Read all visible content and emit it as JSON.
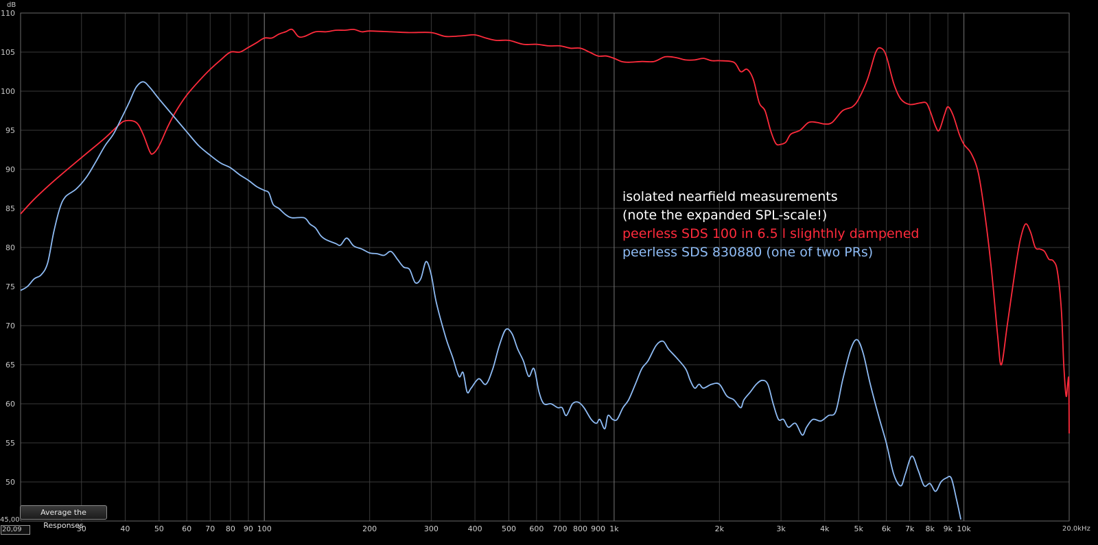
{
  "axis": {
    "y_unit": "dB",
    "x_unit_label": "20.0kHz",
    "y_min_label": "45,00",
    "x_min_label": "20,09"
  },
  "legend": {
    "line1": "isolated nearfield measurements",
    "line2": "(note the expanded SPL-scale!)",
    "line3": "peerless SDS 100 in 6.5 l slighthly dampened",
    "line4": "peerless SDS 830880 (one of two PRs)",
    "line1_color": "#ffffff",
    "line2_color": "#ffffff",
    "line3_color": "#ff2b3c",
    "line4_color": "#8fbcf5"
  },
  "controls": {
    "average_button": "Average the Responses"
  },
  "colors": {
    "background": "#000000",
    "grid_minor": "#3a3a3a",
    "grid_major": "#6a6a6a",
    "series_red": "#ff2b3c",
    "series_blue": "#8fbcf5"
  },
  "chart_data": {
    "type": "line",
    "x_scale": "log",
    "xlim": [
      20.09,
      20000
    ],
    "ylim": [
      45,
      110
    ],
    "grid": true,
    "ylabel": "dB",
    "x_ticks": [
      {
        "v": 30,
        "label": "30"
      },
      {
        "v": 40,
        "label": "40"
      },
      {
        "v": 50,
        "label": "50"
      },
      {
        "v": 60,
        "label": "60"
      },
      {
        "v": 70,
        "label": "70"
      },
      {
        "v": 80,
        "label": "80"
      },
      {
        "v": 90,
        "label": "90"
      },
      {
        "v": 100,
        "label": "100"
      },
      {
        "v": 200,
        "label": "200"
      },
      {
        "v": 300,
        "label": "300"
      },
      {
        "v": 400,
        "label": "400"
      },
      {
        "v": 500,
        "label": "500"
      },
      {
        "v": 600,
        "label": "600"
      },
      {
        "v": 700,
        "label": "700"
      },
      {
        "v": 800,
        "label": "800"
      },
      {
        "v": 900,
        "label": "900"
      },
      {
        "v": 1000,
        "label": "1k"
      },
      {
        "v": 2000,
        "label": "2k"
      },
      {
        "v": 3000,
        "label": "3k"
      },
      {
        "v": 4000,
        "label": "4k"
      },
      {
        "v": 5000,
        "label": "5k"
      },
      {
        "v": 6000,
        "label": "6k"
      },
      {
        "v": 7000,
        "label": "7k"
      },
      {
        "v": 8000,
        "label": "8k"
      },
      {
        "v": 9000,
        "label": "9k"
      },
      {
        "v": 10000,
        "label": "10k"
      }
    ],
    "y_ticks": [
      50,
      55,
      60,
      65,
      70,
      75,
      80,
      85,
      90,
      95,
      100,
      105,
      110
    ],
    "series": [
      {
        "name": "peerless SDS 100 in 6.5 l slighthly dampened",
        "color": "#ff2b3c",
        "points": [
          [
            20.09,
            84.3
          ],
          [
            22,
            86.2
          ],
          [
            25,
            88.5
          ],
          [
            30,
            91.5
          ],
          [
            35,
            94.0
          ],
          [
            38,
            95.5
          ],
          [
            40,
            96.2
          ],
          [
            43,
            96.0
          ],
          [
            45,
            94.5
          ],
          [
            47,
            92.3
          ],
          [
            48,
            92.0
          ],
          [
            50,
            93.0
          ],
          [
            53,
            95.5
          ],
          [
            56,
            97.5
          ],
          [
            60,
            99.5
          ],
          [
            65,
            101.3
          ],
          [
            70,
            102.8
          ],
          [
            75,
            104.0
          ],
          [
            80,
            105.0
          ],
          [
            85,
            105.0
          ],
          [
            90,
            105.6
          ],
          [
            95,
            106.2
          ],
          [
            100,
            106.8
          ],
          [
            105,
            106.8
          ],
          [
            110,
            107.3
          ],
          [
            115,
            107.6
          ],
          [
            120,
            107.9
          ],
          [
            125,
            107.0
          ],
          [
            130,
            107.0
          ],
          [
            140,
            107.6
          ],
          [
            150,
            107.6
          ],
          [
            160,
            107.8
          ],
          [
            170,
            107.8
          ],
          [
            180,
            107.9
          ],
          [
            190,
            107.6
          ],
          [
            200,
            107.7
          ],
          [
            230,
            107.6
          ],
          [
            260,
            107.5
          ],
          [
            300,
            107.5
          ],
          [
            330,
            107.0
          ],
          [
            370,
            107.1
          ],
          [
            400,
            107.2
          ],
          [
            430,
            106.8
          ],
          [
            460,
            106.5
          ],
          [
            500,
            106.5
          ],
          [
            550,
            106.0
          ],
          [
            600,
            106.0
          ],
          [
            650,
            105.8
          ],
          [
            700,
            105.8
          ],
          [
            750,
            105.5
          ],
          [
            800,
            105.5
          ],
          [
            850,
            105.0
          ],
          [
            900,
            104.5
          ],
          [
            950,
            104.5
          ],
          [
            1000,
            104.2
          ],
          [
            1050,
            103.8
          ],
          [
            1100,
            103.7
          ],
          [
            1200,
            103.8
          ],
          [
            1300,
            103.8
          ],
          [
            1400,
            104.4
          ],
          [
            1500,
            104.3
          ],
          [
            1600,
            104.0
          ],
          [
            1700,
            104.0
          ],
          [
            1800,
            104.2
          ],
          [
            1900,
            103.9
          ],
          [
            2000,
            103.9
          ],
          [
            2200,
            103.7
          ],
          [
            2300,
            102.5
          ],
          [
            2400,
            102.8
          ],
          [
            2500,
            101.5
          ],
          [
            2600,
            98.5
          ],
          [
            2700,
            97.5
          ],
          [
            2800,
            95.0
          ],
          [
            2900,
            93.3
          ],
          [
            3000,
            93.2
          ],
          [
            3100,
            93.5
          ],
          [
            3200,
            94.5
          ],
          [
            3400,
            95.0
          ],
          [
            3600,
            96.0
          ],
          [
            3800,
            96.0
          ],
          [
            4000,
            95.8
          ],
          [
            4200,
            96.0
          ],
          [
            4500,
            97.5
          ],
          [
            4800,
            98.0
          ],
          [
            5000,
            99.0
          ],
          [
            5300,
            101.5
          ],
          [
            5600,
            105.0
          ],
          [
            5800,
            105.5
          ],
          [
            6000,
            104.5
          ],
          [
            6300,
            101.0
          ],
          [
            6600,
            99.0
          ],
          [
            7000,
            98.3
          ],
          [
            7500,
            98.5
          ],
          [
            7800,
            98.5
          ],
          [
            8000,
            97.5
          ],
          [
            8300,
            95.5
          ],
          [
            8500,
            95.0
          ],
          [
            8800,
            97.0
          ],
          [
            9000,
            98.0
          ],
          [
            9300,
            97.0
          ],
          [
            9700,
            94.5
          ],
          [
            10000,
            93.2
          ],
          [
            10500,
            92.0
          ],
          [
            11000,
            89.5
          ],
          [
            11500,
            84.0
          ],
          [
            12000,
            77.0
          ],
          [
            12500,
            68.5
          ],
          [
            12800,
            65.0
          ],
          [
            13300,
            70.0
          ],
          [
            14000,
            77.0
          ],
          [
            14500,
            81.0
          ],
          [
            15000,
            83.0
          ],
          [
            15500,
            82.0
          ],
          [
            16000,
            80.0
          ],
          [
            16500,
            79.8
          ],
          [
            17000,
            79.5
          ],
          [
            17500,
            78.5
          ],
          [
            18000,
            78.3
          ],
          [
            18500,
            77.0
          ],
          [
            19000,
            72.0
          ],
          [
            19300,
            65.0
          ],
          [
            19600,
            61.0
          ],
          [
            19800,
            62.5
          ],
          [
            19950,
            63.0
          ],
          [
            20000,
            56.2
          ]
        ]
      },
      {
        "name": "peerless SDS 830880 (one of two PRs)",
        "color": "#8fbcf5",
        "points": [
          [
            20.09,
            74.5
          ],
          [
            21,
            75.0
          ],
          [
            22,
            76.0
          ],
          [
            23,
            76.5
          ],
          [
            24,
            78.0
          ],
          [
            25,
            82.0
          ],
          [
            26,
            85.0
          ],
          [
            27,
            86.5
          ],
          [
            29,
            87.5
          ],
          [
            31,
            89.0
          ],
          [
            33,
            91.0
          ],
          [
            35,
            93.0
          ],
          [
            37,
            94.5
          ],
          [
            39,
            96.5
          ],
          [
            41,
            98.5
          ],
          [
            43,
            100.5
          ],
          [
            45,
            101.2
          ],
          [
            47,
            100.5
          ],
          [
            50,
            99.0
          ],
          [
            55,
            96.8
          ],
          [
            60,
            94.8
          ],
          [
            65,
            93.0
          ],
          [
            70,
            91.8
          ],
          [
            75,
            90.8
          ],
          [
            80,
            90.2
          ],
          [
            85,
            89.3
          ],
          [
            90,
            88.6
          ],
          [
            95,
            87.8
          ],
          [
            100,
            87.3
          ],
          [
            103,
            87.0
          ],
          [
            106,
            85.5
          ],
          [
            110,
            85.0
          ],
          [
            115,
            84.2
          ],
          [
            120,
            83.8
          ],
          [
            130,
            83.8
          ],
          [
            135,
            83.0
          ],
          [
            140,
            82.5
          ],
          [
            145,
            81.5
          ],
          [
            150,
            81.0
          ],
          [
            160,
            80.5
          ],
          [
            165,
            80.3
          ],
          [
            172,
            81.2
          ],
          [
            180,
            80.2
          ],
          [
            190,
            79.8
          ],
          [
            200,
            79.3
          ],
          [
            210,
            79.2
          ],
          [
            220,
            79.0
          ],
          [
            230,
            79.5
          ],
          [
            240,
            78.5
          ],
          [
            250,
            77.5
          ],
          [
            260,
            77.2
          ],
          [
            270,
            75.5
          ],
          [
            280,
            76.0
          ],
          [
            290,
            78.2
          ],
          [
            300,
            76.5
          ],
          [
            310,
            73.0
          ],
          [
            330,
            68.5
          ],
          [
            345,
            66.0
          ],
          [
            360,
            63.5
          ],
          [
            370,
            64.0
          ],
          [
            380,
            61.5
          ],
          [
            390,
            62.0
          ],
          [
            410,
            63.2
          ],
          [
            430,
            62.5
          ],
          [
            450,
            64.5
          ],
          [
            470,
            67.5
          ],
          [
            490,
            69.5
          ],
          [
            510,
            69.0
          ],
          [
            530,
            67.0
          ],
          [
            550,
            65.5
          ],
          [
            570,
            63.5
          ],
          [
            590,
            64.5
          ],
          [
            610,
            61.5
          ],
          [
            630,
            60.0
          ],
          [
            660,
            60.0
          ],
          [
            690,
            59.5
          ],
          [
            710,
            59.5
          ],
          [
            730,
            58.5
          ],
          [
            760,
            60.0
          ],
          [
            790,
            60.2
          ],
          [
            820,
            59.5
          ],
          [
            860,
            58.0
          ],
          [
            890,
            57.5
          ],
          [
            910,
            58.0
          ],
          [
            940,
            56.8
          ],
          [
            960,
            58.5
          ],
          [
            990,
            58.0
          ],
          [
            1020,
            58.0
          ],
          [
            1060,
            59.5
          ],
          [
            1100,
            60.5
          ],
          [
            1150,
            62.5
          ],
          [
            1200,
            64.5
          ],
          [
            1250,
            65.5
          ],
          [
            1320,
            67.5
          ],
          [
            1380,
            68.0
          ],
          [
            1430,
            67.0
          ],
          [
            1500,
            66.0
          ],
          [
            1600,
            64.5
          ],
          [
            1650,
            63.0
          ],
          [
            1700,
            62.0
          ],
          [
            1750,
            62.5
          ],
          [
            1800,
            62.0
          ],
          [
            1900,
            62.5
          ],
          [
            2000,
            62.5
          ],
          [
            2100,
            61.0
          ],
          [
            2200,
            60.5
          ],
          [
            2300,
            59.5
          ],
          [
            2350,
            60.5
          ],
          [
            2450,
            61.5
          ],
          [
            2550,
            62.5
          ],
          [
            2650,
            63.0
          ],
          [
            2750,
            62.5
          ],
          [
            2850,
            60.0
          ],
          [
            2950,
            58.0
          ],
          [
            3050,
            58.0
          ],
          [
            3150,
            57.0
          ],
          [
            3300,
            57.5
          ],
          [
            3450,
            56.0
          ],
          [
            3550,
            57.0
          ],
          [
            3700,
            58.0
          ],
          [
            3900,
            57.8
          ],
          [
            4100,
            58.5
          ],
          [
            4300,
            59.0
          ],
          [
            4500,
            63.0
          ],
          [
            4750,
            67.0
          ],
          [
            4950,
            68.2
          ],
          [
            5150,
            66.5
          ],
          [
            5400,
            62.5
          ],
          [
            5700,
            58.5
          ],
          [
            6000,
            55.0
          ],
          [
            6300,
            51.0
          ],
          [
            6600,
            49.5
          ],
          [
            6800,
            51.0
          ],
          [
            7100,
            53.3
          ],
          [
            7400,
            51.5
          ],
          [
            7700,
            49.5
          ],
          [
            8000,
            49.8
          ],
          [
            8300,
            48.8
          ],
          [
            8600,
            50.0
          ],
          [
            8900,
            50.5
          ],
          [
            9200,
            50.5
          ],
          [
            9500,
            48.0
          ],
          [
            9800,
            45.2
          ]
        ]
      }
    ]
  }
}
